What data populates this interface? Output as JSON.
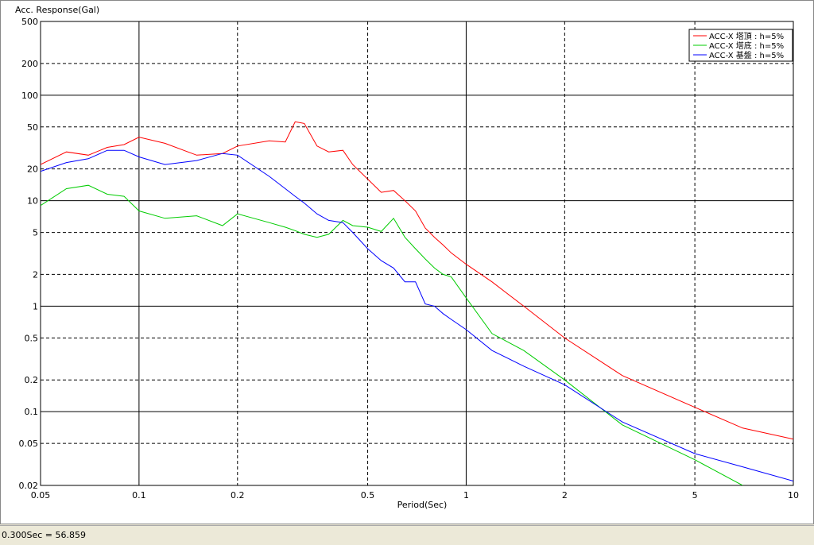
{
  "chart_data": {
    "type": "line",
    "ylabel": "Acc. Response(Gal)",
    "xlabel": "Period(Sec)",
    "xscale": "log",
    "yscale": "log",
    "grid": true,
    "legend": "upper right",
    "xlim": [
      0.05,
      10
    ],
    "ylim": [
      0.02,
      500
    ],
    "xticks": [
      0.05,
      0.1,
      0.2,
      0.5,
      1,
      2,
      5,
      10
    ],
    "yticks": [
      500,
      200,
      100,
      50,
      20,
      10,
      5,
      2,
      1,
      0.5,
      0.2,
      0.1,
      0.05,
      0.02
    ],
    "x": [
      0.05,
      0.06,
      0.07,
      0.08,
      0.09,
      0.1,
      0.12,
      0.15,
      0.18,
      0.2,
      0.25,
      0.28,
      0.3,
      0.32,
      0.35,
      0.38,
      0.42,
      0.45,
      0.5,
      0.55,
      0.6,
      0.65,
      0.7,
      0.75,
      0.8,
      0.85,
      0.9,
      1,
      1.2,
      1.5,
      2,
      3,
      5,
      7,
      10
    ],
    "series": [
      {
        "name": "ACC-X 塔頂 : h=5%",
        "color": "#ff0000",
        "values": [
          22,
          29,
          27,
          32,
          34,
          40,
          35,
          27,
          28,
          33,
          37,
          36,
          56,
          54,
          33,
          29,
          30,
          22,
          16,
          12,
          12.5,
          10,
          8,
          5.5,
          4.5,
          3.8,
          3.2,
          2.5,
          1.7,
          1.0,
          0.5,
          0.22,
          0.11,
          0.07,
          0.055
        ]
      },
      {
        "name": "ACC-X 塔底 : h=5%",
        "color": "#00cc00",
        "values": [
          9,
          13,
          14,
          11.5,
          11,
          8,
          6.8,
          7.2,
          5.8,
          7.5,
          6.2,
          5.6,
          5.2,
          4.8,
          4.5,
          4.8,
          6.5,
          5.8,
          5.6,
          5.1,
          6.8,
          4.5,
          3.5,
          2.8,
          2.3,
          2.0,
          1.9,
          1.2,
          0.55,
          0.38,
          0.2,
          0.075,
          0.035,
          0.02,
          null
        ]
      },
      {
        "name": "ACC-X 基盤 : h=5%",
        "color": "#0000ff",
        "values": [
          19,
          23,
          25,
          30,
          30,
          26,
          22,
          24,
          28,
          27,
          17,
          13,
          11,
          9.5,
          7.5,
          6.5,
          6.2,
          5,
          3.5,
          2.7,
          2.3,
          1.7,
          1.7,
          1.05,
          1.0,
          0.85,
          0.75,
          0.6,
          0.38,
          0.27,
          0.18,
          0.08,
          0.04,
          0.03,
          0.022
        ]
      }
    ]
  },
  "status_bar": "0.300Sec = 56.859"
}
